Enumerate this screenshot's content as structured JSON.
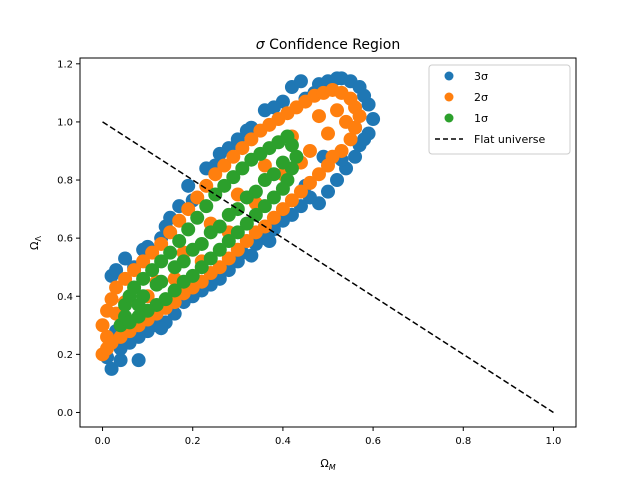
{
  "chart_data": {
    "type": "scatter",
    "title_symbol": "σ",
    "title_rest": " Confidence Region",
    "xlabel_main": "Ω",
    "xlabel_sub": "M",
    "ylabel_main": "Ω",
    "ylabel_sub": "Λ",
    "xlim": [
      -0.05,
      1.05
    ],
    "ylim": [
      -0.05,
      1.22
    ],
    "xticks": [
      0.0,
      0.2,
      0.4,
      0.6,
      0.8,
      1.0
    ],
    "yticks": [
      0.0,
      0.2,
      0.4,
      0.6,
      0.8,
      1.0,
      1.2
    ],
    "xtick_labels": [
      "0.0",
      "0.2",
      "0.4",
      "0.6",
      "0.8",
      "1.0"
    ],
    "ytick_labels": [
      "0.0",
      "0.2",
      "0.4",
      "0.6",
      "0.8",
      "1.0",
      "1.2"
    ],
    "legend_position": "top-right",
    "series": [
      {
        "name": "3σ",
        "color": "#1f77b4",
        "kind": "scatter",
        "points": [
          [
            0.01,
            0.19
          ],
          [
            0.02,
            0.15
          ],
          [
            0.04,
            0.18
          ],
          [
            0.08,
            0.18
          ],
          [
            0.03,
            0.28
          ],
          [
            0.05,
            0.31
          ],
          [
            0.02,
            0.47
          ],
          [
            0.03,
            0.49
          ],
          [
            0.05,
            0.53
          ],
          [
            0.07,
            0.5
          ],
          [
            0.1,
            0.57
          ],
          [
            0.13,
            0.6
          ],
          [
            0.14,
            0.64
          ],
          [
            0.17,
            0.71
          ],
          [
            0.2,
            0.73
          ],
          [
            0.23,
            0.84
          ],
          [
            0.25,
            0.85
          ],
          [
            0.28,
            0.91
          ],
          [
            0.3,
            0.94
          ],
          [
            0.33,
            0.98
          ],
          [
            0.36,
            1.04
          ],
          [
            0.4,
            1.07
          ],
          [
            0.42,
            1.12
          ],
          [
            0.45,
            1.08
          ],
          [
            0.47,
            1.1
          ],
          [
            0.48,
            1.13
          ],
          [
            0.5,
            1.14
          ],
          [
            0.52,
            1.15
          ],
          [
            0.53,
            1.15
          ],
          [
            0.55,
            1.14
          ],
          [
            0.57,
            1.12
          ],
          [
            0.58,
            1.09
          ],
          [
            0.59,
            1.06
          ],
          [
            0.6,
            1.01
          ],
          [
            0.59,
            0.96
          ],
          [
            0.57,
            0.92
          ],
          [
            0.56,
            0.88
          ],
          [
            0.54,
            0.84
          ],
          [
            0.53,
            0.87
          ],
          [
            0.52,
            0.8
          ],
          [
            0.5,
            0.76
          ],
          [
            0.48,
            0.72
          ],
          [
            0.46,
            0.74
          ],
          [
            0.44,
            0.71
          ],
          [
            0.42,
            0.68
          ],
          [
            0.4,
            0.66
          ],
          [
            0.38,
            0.63
          ],
          [
            0.36,
            0.6
          ],
          [
            0.34,
            0.58
          ],
          [
            0.31,
            0.55
          ],
          [
            0.3,
            0.52
          ],
          [
            0.28,
            0.49
          ],
          [
            0.26,
            0.46
          ],
          [
            0.24,
            0.44
          ],
          [
            0.22,
            0.42
          ],
          [
            0.2,
            0.4
          ],
          [
            0.18,
            0.38
          ],
          [
            0.16,
            0.34
          ],
          [
            0.14,
            0.31
          ],
          [
            0.12,
            0.3
          ],
          [
            0.1,
            0.28
          ],
          [
            0.08,
            0.26
          ],
          [
            0.06,
            0.24
          ],
          [
            0.04,
            0.22
          ],
          [
            0.13,
            0.29
          ],
          [
            0.11,
            0.34
          ],
          [
            0.09,
            0.56
          ],
          [
            0.15,
            0.67
          ],
          [
            0.19,
            0.78
          ],
          [
            0.26,
            0.89
          ],
          [
            0.32,
            0.97
          ],
          [
            0.38,
            1.05
          ],
          [
            0.44,
            1.14
          ],
          [
            0.37,
            0.59
          ],
          [
            0.33,
            0.54
          ],
          [
            0.45,
            0.78
          ],
          [
            0.49,
            0.88
          ],
          [
            0.56,
            0.98
          ],
          [
            0.58,
            0.94
          ]
        ]
      },
      {
        "name": "2σ",
        "color": "#ff7f0e",
        "kind": "scatter",
        "points": [
          [
            0.0,
            0.2
          ],
          [
            0.01,
            0.22
          ],
          [
            0.01,
            0.26
          ],
          [
            0.0,
            0.3
          ],
          [
            0.01,
            0.35
          ],
          [
            0.02,
            0.39
          ],
          [
            0.03,
            0.43
          ],
          [
            0.05,
            0.46
          ],
          [
            0.07,
            0.49
          ],
          [
            0.09,
            0.52
          ],
          [
            0.11,
            0.55
          ],
          [
            0.13,
            0.58
          ],
          [
            0.15,
            0.62
          ],
          [
            0.17,
            0.66
          ],
          [
            0.19,
            0.7
          ],
          [
            0.21,
            0.74
          ],
          [
            0.23,
            0.78
          ],
          [
            0.25,
            0.82
          ],
          [
            0.27,
            0.85
          ],
          [
            0.29,
            0.88
          ],
          [
            0.31,
            0.91
          ],
          [
            0.33,
            0.94
          ],
          [
            0.35,
            0.97
          ],
          [
            0.37,
            0.99
          ],
          [
            0.39,
            1.01
          ],
          [
            0.41,
            1.03
          ],
          [
            0.43,
            1.05
          ],
          [
            0.45,
            1.07
          ],
          [
            0.47,
            1.09
          ],
          [
            0.49,
            1.1
          ],
          [
            0.51,
            1.11
          ],
          [
            0.53,
            1.1
          ],
          [
            0.55,
            1.08
          ],
          [
            0.56,
            1.05
          ],
          [
            0.57,
            1.02
          ],
          [
            0.56,
            0.98
          ],
          [
            0.55,
            0.94
          ],
          [
            0.53,
            0.9
          ],
          [
            0.51,
            0.88
          ],
          [
            0.5,
            0.85
          ],
          [
            0.48,
            0.82
          ],
          [
            0.46,
            0.79
          ],
          [
            0.44,
            0.76
          ],
          [
            0.42,
            0.73
          ],
          [
            0.4,
            0.7
          ],
          [
            0.38,
            0.67
          ],
          [
            0.36,
            0.64
          ],
          [
            0.34,
            0.62
          ],
          [
            0.32,
            0.59
          ],
          [
            0.3,
            0.56
          ],
          [
            0.28,
            0.53
          ],
          [
            0.26,
            0.5
          ],
          [
            0.24,
            0.48
          ],
          [
            0.22,
            0.45
          ],
          [
            0.2,
            0.43
          ],
          [
            0.18,
            0.41
          ],
          [
            0.16,
            0.38
          ],
          [
            0.14,
            0.36
          ],
          [
            0.12,
            0.34
          ],
          [
            0.1,
            0.32
          ],
          [
            0.08,
            0.3
          ],
          [
            0.06,
            0.28
          ],
          [
            0.04,
            0.26
          ],
          [
            0.02,
            0.24
          ],
          [
            0.03,
            0.34
          ],
          [
            0.05,
            0.38
          ],
          [
            0.12,
            0.45
          ],
          [
            0.18,
            0.55
          ],
          [
            0.24,
            0.65
          ],
          [
            0.3,
            0.75
          ],
          [
            0.36,
            0.85
          ],
          [
            0.42,
            0.95
          ],
          [
            0.48,
            1.02
          ],
          [
            0.52,
            1.04
          ],
          [
            0.5,
            0.96
          ],
          [
            0.46,
            0.9
          ],
          [
            0.4,
            0.82
          ],
          [
            0.34,
            0.72
          ],
          [
            0.28,
            0.62
          ],
          [
            0.22,
            0.52
          ],
          [
            0.16,
            0.46
          ],
          [
            0.1,
            0.4
          ],
          [
            0.54,
            1.0
          ],
          [
            0.44,
            0.86
          ]
        ]
      },
      {
        "name": "1σ",
        "color": "#2ca02c",
        "kind": "scatter",
        "points": [
          [
            0.04,
            0.3
          ],
          [
            0.05,
            0.33
          ],
          [
            0.05,
            0.37
          ],
          [
            0.06,
            0.4
          ],
          [
            0.07,
            0.43
          ],
          [
            0.09,
            0.46
          ],
          [
            0.11,
            0.49
          ],
          [
            0.13,
            0.52
          ],
          [
            0.15,
            0.55
          ],
          [
            0.17,
            0.59
          ],
          [
            0.19,
            0.63
          ],
          [
            0.21,
            0.67
          ],
          [
            0.23,
            0.71
          ],
          [
            0.25,
            0.75
          ],
          [
            0.27,
            0.78
          ],
          [
            0.29,
            0.81
          ],
          [
            0.31,
            0.84
          ],
          [
            0.33,
            0.87
          ],
          [
            0.35,
            0.89
          ],
          [
            0.37,
            0.91
          ],
          [
            0.39,
            0.93
          ],
          [
            0.41,
            0.95
          ],
          [
            0.42,
            0.92
          ],
          [
            0.43,
            0.88
          ],
          [
            0.42,
            0.84
          ],
          [
            0.41,
            0.8
          ],
          [
            0.4,
            0.77
          ],
          [
            0.38,
            0.74
          ],
          [
            0.36,
            0.71
          ],
          [
            0.34,
            0.68
          ],
          [
            0.32,
            0.65
          ],
          [
            0.3,
            0.62
          ],
          [
            0.28,
            0.59
          ],
          [
            0.26,
            0.56
          ],
          [
            0.24,
            0.53
          ],
          [
            0.22,
            0.5
          ],
          [
            0.2,
            0.47
          ],
          [
            0.18,
            0.45
          ],
          [
            0.16,
            0.42
          ],
          [
            0.14,
            0.39
          ],
          [
            0.12,
            0.37
          ],
          [
            0.1,
            0.35
          ],
          [
            0.08,
            0.33
          ],
          [
            0.06,
            0.31
          ],
          [
            0.09,
            0.4
          ],
          [
            0.13,
            0.45
          ],
          [
            0.18,
            0.52
          ],
          [
            0.22,
            0.58
          ],
          [
            0.26,
            0.64
          ],
          [
            0.3,
            0.7
          ],
          [
            0.34,
            0.76
          ],
          [
            0.38,
            0.82
          ],
          [
            0.4,
            0.86
          ],
          [
            0.36,
            0.8
          ],
          [
            0.32,
            0.74
          ],
          [
            0.28,
            0.68
          ],
          [
            0.24,
            0.62
          ],
          [
            0.2,
            0.56
          ],
          [
            0.16,
            0.5
          ],
          [
            0.12,
            0.44
          ],
          [
            0.08,
            0.37
          ]
        ]
      },
      {
        "name": "Flat universe",
        "color": "#000000",
        "kind": "line",
        "dash": "dashed",
        "x": [
          0.0,
          1.0
        ],
        "y": [
          1.0,
          0.0
        ]
      }
    ]
  }
}
